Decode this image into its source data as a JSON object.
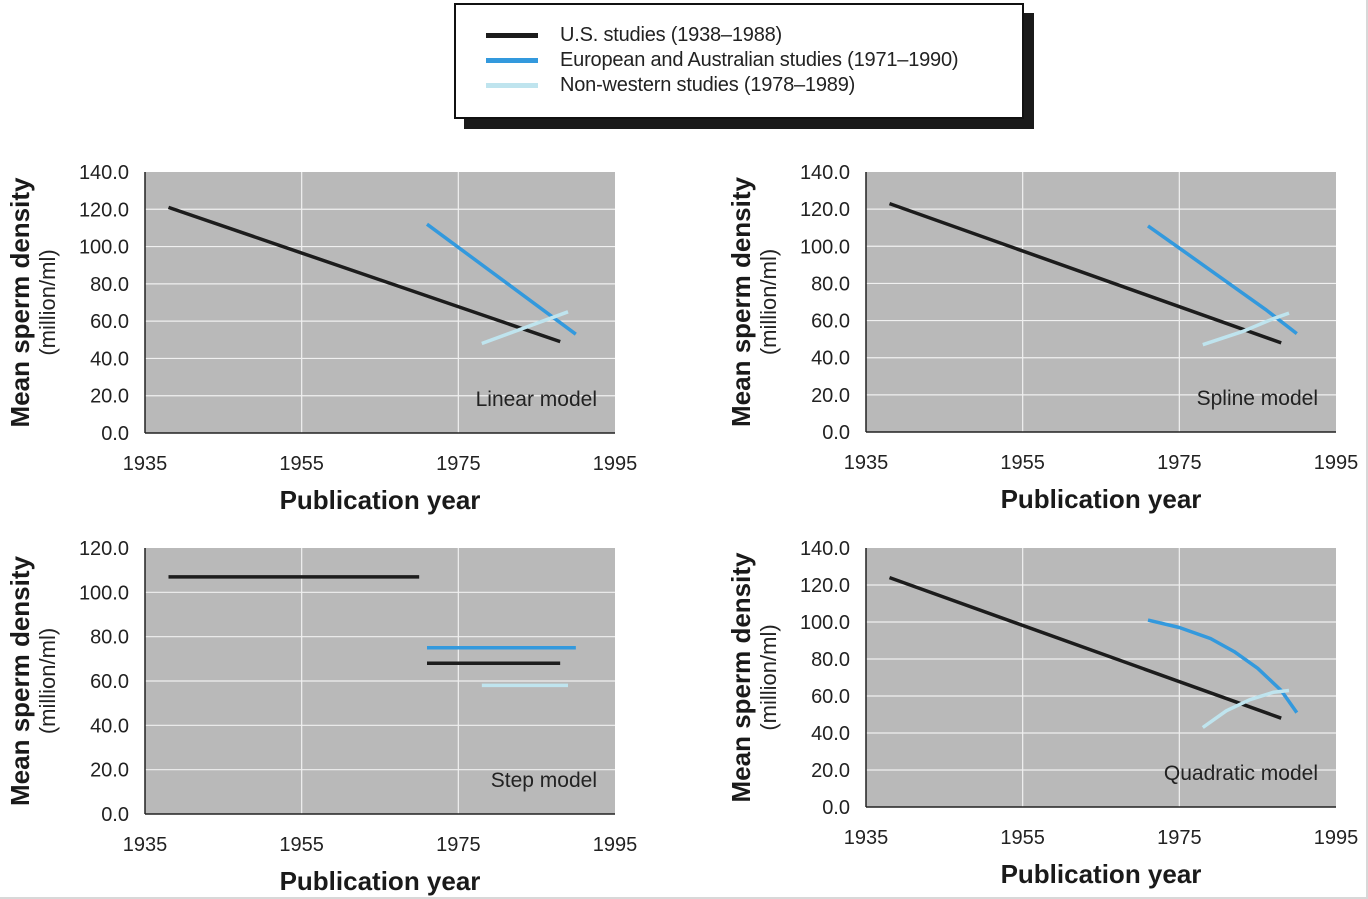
{
  "legend": {
    "items": [
      {
        "label": "U.S. studies (1938–1988)",
        "color": "#1c1c1c"
      },
      {
        "label": "European and Australian studies (1971–1990)",
        "color": "#3399dd"
      },
      {
        "label": "Non-western studies (1978–1989)",
        "color": "#bfe4ee"
      }
    ]
  },
  "colors": {
    "plot_background": "#b9b9b9",
    "grid": "#f0f0f0",
    "us": "#1c1c1c",
    "european": "#3399dd",
    "nonwestern": "#bfe4ee"
  },
  "chart_data": [
    {
      "type": "line",
      "annotation": "Linear model",
      "xlabel": "Publication year",
      "ylabel_main": "Mean sperm density",
      "ylabel_unit": "(million/ml)",
      "xlim": [
        1935,
        1995
      ],
      "ylim": [
        0,
        140
      ],
      "xticks": [
        "1935",
        "1955",
        "1975",
        "1995"
      ],
      "yticks": [
        "0.0",
        "20.0",
        "40.0",
        "60.0",
        "80.0",
        "100.0",
        "120.0",
        "140.0"
      ],
      "grid": true,
      "series": [
        {
          "name": "U.S. studies (1938–1988)",
          "color": "#1c1c1c",
          "points": [
            [
              1938,
              121
            ],
            [
              1988,
              49
            ]
          ]
        },
        {
          "name": "European and Australian studies (1971–1990)",
          "color": "#3399dd",
          "points": [
            [
              1971,
              112
            ],
            [
              1990,
              53
            ]
          ]
        },
        {
          "name": "Non-western studies (1978–1989)",
          "color": "#bfe4ee",
          "points": [
            [
              1978,
              48
            ],
            [
              1989,
              65
            ]
          ]
        }
      ]
    },
    {
      "type": "line",
      "annotation": "Spline model",
      "xlabel": "Publication year",
      "ylabel_main": "Mean sperm density",
      "ylabel_unit": "(million/ml)",
      "xlim": [
        1935,
        1995
      ],
      "ylim": [
        0,
        140
      ],
      "xticks": [
        "1935",
        "1955",
        "1975",
        "1995"
      ],
      "yticks": [
        "0.0",
        "20.0",
        "40.0",
        "60.0",
        "80.0",
        "100.0",
        "120.0",
        "140.0"
      ],
      "grid": true,
      "series": [
        {
          "name": "U.S. studies (1938–1988)",
          "color": "#1c1c1c",
          "points": [
            [
              1938,
              123
            ],
            [
              1988,
              48
            ]
          ]
        },
        {
          "name": "European and Australian studies (1971–1990)",
          "color": "#3399dd",
          "points": [
            [
              1971,
              111
            ],
            [
              1976,
              96
            ],
            [
              1981,
              81
            ],
            [
              1986,
              66
            ],
            [
              1990,
              53
            ]
          ]
        },
        {
          "name": "Non-western studies (1978–1989)",
          "color": "#bfe4ee",
          "points": [
            [
              1978,
              47
            ],
            [
              1983,
              54
            ],
            [
              1987,
              61
            ],
            [
              1989,
              64
            ]
          ]
        }
      ]
    },
    {
      "type": "line",
      "annotation": "Step model",
      "xlabel": "Publication year",
      "ylabel_main": "Mean sperm density",
      "ylabel_unit": "(million/ml)",
      "xlim": [
        1935,
        1995
      ],
      "ylim": [
        0,
        120
      ],
      "xticks": [
        "1935",
        "1955",
        "1975",
        "1995"
      ],
      "yticks": [
        "0.0",
        "20.0",
        "40.0",
        "60.0",
        "80.0",
        "100.0",
        "120.0"
      ],
      "grid": true,
      "series": [
        {
          "name": "U.S. studies (1938–1988)",
          "color": "#1c1c1c",
          "segments": [
            [
              [
                1938,
                107
              ],
              [
                1970,
                107
              ]
            ],
            [
              [
                1971,
                68
              ],
              [
                1988,
                68
              ]
            ]
          ]
        },
        {
          "name": "European and Australian studies (1971–1990)",
          "color": "#3399dd",
          "segments": [
            [
              [
                1971,
                75
              ],
              [
                1990,
                75
              ]
            ]
          ]
        },
        {
          "name": "Non-western studies (1978–1989)",
          "color": "#bfe4ee",
          "segments": [
            [
              [
                1978,
                58
              ],
              [
                1989,
                58
              ]
            ]
          ]
        }
      ]
    },
    {
      "type": "line",
      "annotation": "Quadratic model",
      "xlabel": "Publication year",
      "ylabel_main": "Mean sperm density",
      "ylabel_unit": "(million/ml)",
      "xlim": [
        1935,
        1995
      ],
      "ylim": [
        0,
        140
      ],
      "xticks": [
        "1935",
        "1955",
        "1975",
        "1995"
      ],
      "yticks": [
        "0.0",
        "20.0",
        "40.0",
        "60.0",
        "80.0",
        "100.0",
        "120.0",
        "140.0"
      ],
      "grid": true,
      "series": [
        {
          "name": "U.S. studies (1938–1988)",
          "color": "#1c1c1c",
          "points": [
            [
              1938,
              124
            ],
            [
              1988,
              48
            ]
          ]
        },
        {
          "name": "European and Australian studies (1971–1990)",
          "color": "#3399dd",
          "points": [
            [
              1971,
              101
            ],
            [
              1975,
              97
            ],
            [
              1979,
              91
            ],
            [
              1982,
              84
            ],
            [
              1985,
              75
            ],
            [
              1988,
              63
            ],
            [
              1990,
              51
            ]
          ]
        },
        {
          "name": "Non-western studies (1978–1989)",
          "color": "#bfe4ee",
          "points": [
            [
              1978,
              43
            ],
            [
              1981,
              52
            ],
            [
              1984,
              58
            ],
            [
              1987,
              62
            ],
            [
              1989,
              63
            ]
          ]
        }
      ]
    }
  ]
}
